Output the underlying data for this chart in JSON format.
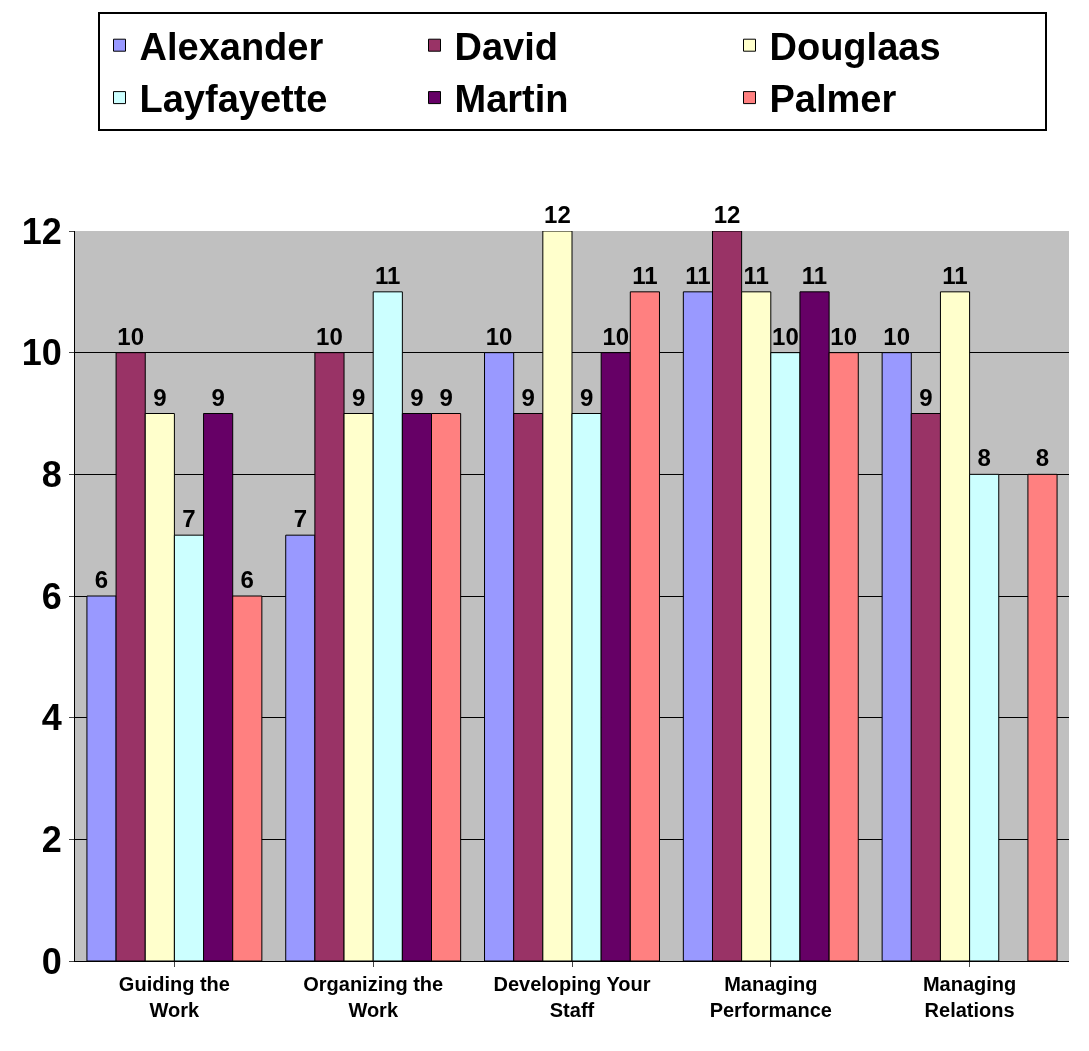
{
  "chart_data": {
    "type": "bar",
    "categories": [
      "Guiding the Work",
      "Organizing the Work",
      "Developing Your Staff",
      "Managing Performance",
      "Managing Relations"
    ],
    "series": [
      {
        "name": "Alexander",
        "color": "#9999ff",
        "values": [
          6,
          7,
          10,
          11,
          10
        ]
      },
      {
        "name": "David",
        "color": "#993366",
        "values": [
          10,
          10,
          9,
          12,
          9
        ]
      },
      {
        "name": "Douglaas",
        "color": "#ffffcc",
        "values": [
          9,
          9,
          12,
          11,
          11
        ]
      },
      {
        "name": "Layfayette",
        "color": "#ccffff",
        "values": [
          7,
          11,
          9,
          10,
          8
        ]
      },
      {
        "name": "Martin",
        "color": "#660066",
        "values": [
          9,
          9,
          10,
          11,
          null
        ]
      },
      {
        "name": "Palmer",
        "color": "#ff8080",
        "values": [
          6,
          9,
          11,
          10,
          8
        ]
      }
    ],
    "ylim": [
      0,
      12
    ],
    "yticks": [
      0,
      2,
      4,
      6,
      8,
      10,
      12
    ],
    "grid": "y",
    "legend": "top",
    "data_labels": true
  }
}
